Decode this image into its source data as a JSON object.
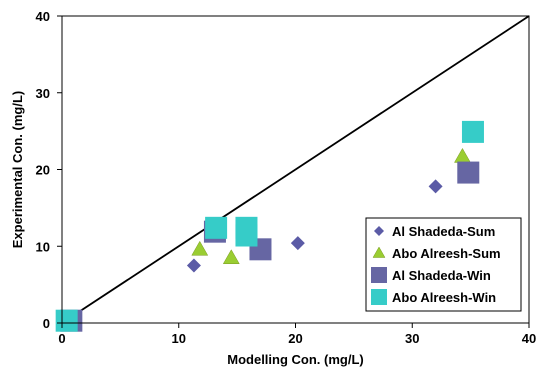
{
  "chart_data": {
    "type": "scatter",
    "title": "",
    "xlabel": "Modelling Con. (mg/L)",
    "ylabel": "Experimental Con. (mg/L)",
    "xlim": [
      0,
      40
    ],
    "ylim": [
      0,
      40
    ],
    "xticks": [
      "0",
      "10",
      "20",
      "30",
      "40"
    ],
    "yticks": [
      "0",
      "10",
      "20",
      "30",
      "40"
    ],
    "grid": false,
    "legend_position": "bottom-right",
    "reference_line": {
      "x": [
        0,
        40
      ],
      "y": [
        0,
        40
      ]
    },
    "series": [
      {
        "name": "Al Shadeda-Sum",
        "marker": "diamond",
        "color": "#5B5BA6",
        "points": [
          [
            0.3,
            0.3
          ],
          [
            11.3,
            7.5
          ],
          [
            20.2,
            10.4
          ],
          [
            32.0,
            17.8
          ]
        ]
      },
      {
        "name": "Abo Alreesh-Sum",
        "marker": "triangle",
        "color": "#9ACD32",
        "points": [
          [
            0.5,
            0.3
          ],
          [
            11.8,
            9.6
          ],
          [
            14.5,
            8.5
          ],
          [
            34.3,
            21.7
          ]
        ]
      },
      {
        "name": "Al Shadeda-Win",
        "marker": "square",
        "color": "#6666A3",
        "points": [
          [
            0.8,
            0.3
          ],
          [
            13.1,
            11.9
          ],
          [
            17.0,
            9.6
          ],
          [
            34.8,
            19.6
          ]
        ]
      },
      {
        "name": "Abo Alreesh-Win",
        "marker": "square",
        "color": "#36CCC8",
        "points": [
          [
            0.4,
            0.3
          ],
          [
            13.2,
            12.4
          ],
          [
            15.8,
            12.4
          ],
          [
            15.8,
            11.4
          ],
          [
            35.2,
            24.9
          ]
        ]
      }
    ]
  }
}
